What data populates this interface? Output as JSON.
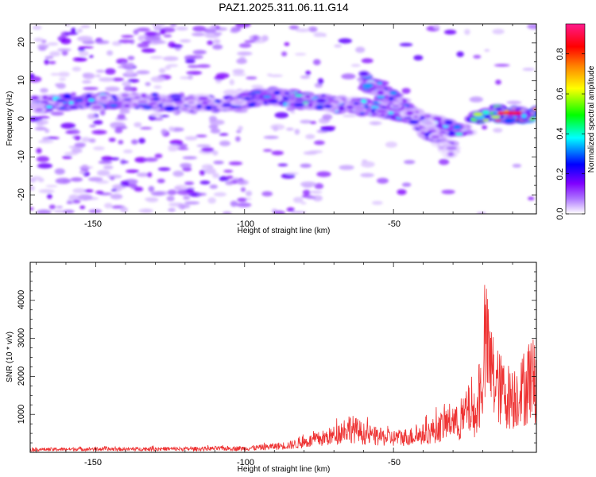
{
  "title": "PAZ1.2025.311.06.11.G14",
  "chart_data": [
    {
      "type": "heatmap",
      "xlabel": "Height of straight line (km)",
      "ylabel": "Frequency (Hz)",
      "xlim": [
        -172,
        -2
      ],
      "ylim": [
        -25,
        25
      ],
      "xticks": [
        -150,
        -100,
        -50
      ],
      "yticks": [
        -20,
        -10,
        0,
        10,
        20
      ],
      "colorbar": {
        "label": "Normalized spectral amplitude",
        "range": [
          0,
          0.95
        ],
        "ticks": [
          "0.0",
          "0.2",
          "0.4",
          "0.6",
          "0.8"
        ],
        "ticks_values": [
          0,
          0.2,
          0.4,
          0.6,
          0.8
        ],
        "colormap": [
          "#ffffff",
          "#ad75ff",
          "#8000ff",
          "#0000ff",
          "#00ffff",
          "#00ff00",
          "#ffff00",
          "#ff8000",
          "#ff0000",
          "#ff1a8c"
        ]
      },
      "ridge": {
        "x": [
          -172,
          -150,
          -140,
          -130,
          -120,
          -110,
          -100,
          -90,
          -80,
          -70,
          -60,
          -50,
          -40,
          -30,
          -25,
          -20,
          -15,
          -10,
          -5,
          -2
        ],
        "y": [
          4,
          4.5,
          5,
          4.5,
          4,
          4,
          5,
          6,
          5,
          4,
          3,
          2,
          0,
          -3,
          -2,
          1,
          1.5,
          1,
          1,
          1
        ],
        "amplitude": [
          0.35,
          0.45,
          0.3,
          0.3,
          0.2,
          0.25,
          0.3,
          0.4,
          0.45,
          0.35,
          0.45,
          0.4,
          0.45,
          0.4,
          0.5,
          0.65,
          0.9,
          0.95,
          0.9,
          0.85
        ]
      },
      "branch": {
        "x": [
          -60,
          -55,
          -50,
          -45,
          -40,
          -35,
          -30
        ],
        "y": [
          10,
          8,
          5,
          2,
          -2,
          -5,
          -8
        ],
        "amplitude": [
          0.35,
          0.4,
          0.35,
          0.3,
          0.25,
          0.2,
          0.15
        ]
      }
    },
    {
      "type": "line",
      "xlabel": "Height of straight line (km)",
      "ylabel": "SNR (10 * v/v)",
      "xlim": [
        -172,
        -2
      ],
      "ylim": [
        0,
        5000
      ],
      "xticks": [
        -150,
        -100,
        -50
      ],
      "yticks": [
        1000,
        2000,
        3000,
        4000
      ],
      "color": "#ee3333",
      "series": [
        {
          "x": [
            -172,
            -160,
            -150,
            -140,
            -130,
            -120,
            -110,
            -100,
            -95,
            -90,
            -85,
            -80,
            -75,
            -70,
            -65,
            -62,
            -60,
            -55,
            -50,
            -45,
            -40,
            -35,
            -30,
            -28,
            -25,
            -22,
            -20,
            -19,
            -18,
            -16,
            -14,
            -12,
            -10,
            -8,
            -6,
            -4,
            -2
          ],
          "y": [
            120,
            130,
            140,
            130,
            150,
            140,
            160,
            170,
            200,
            250,
            300,
            420,
            550,
            700,
            1050,
            900,
            780,
            650,
            600,
            650,
            750,
            1000,
            1400,
            1100,
            1800,
            1500,
            3200,
            4600,
            3800,
            3000,
            2600,
            2400,
            2300,
            2500,
            2600,
            3200,
            2900
          ]
        }
      ]
    }
  ]
}
